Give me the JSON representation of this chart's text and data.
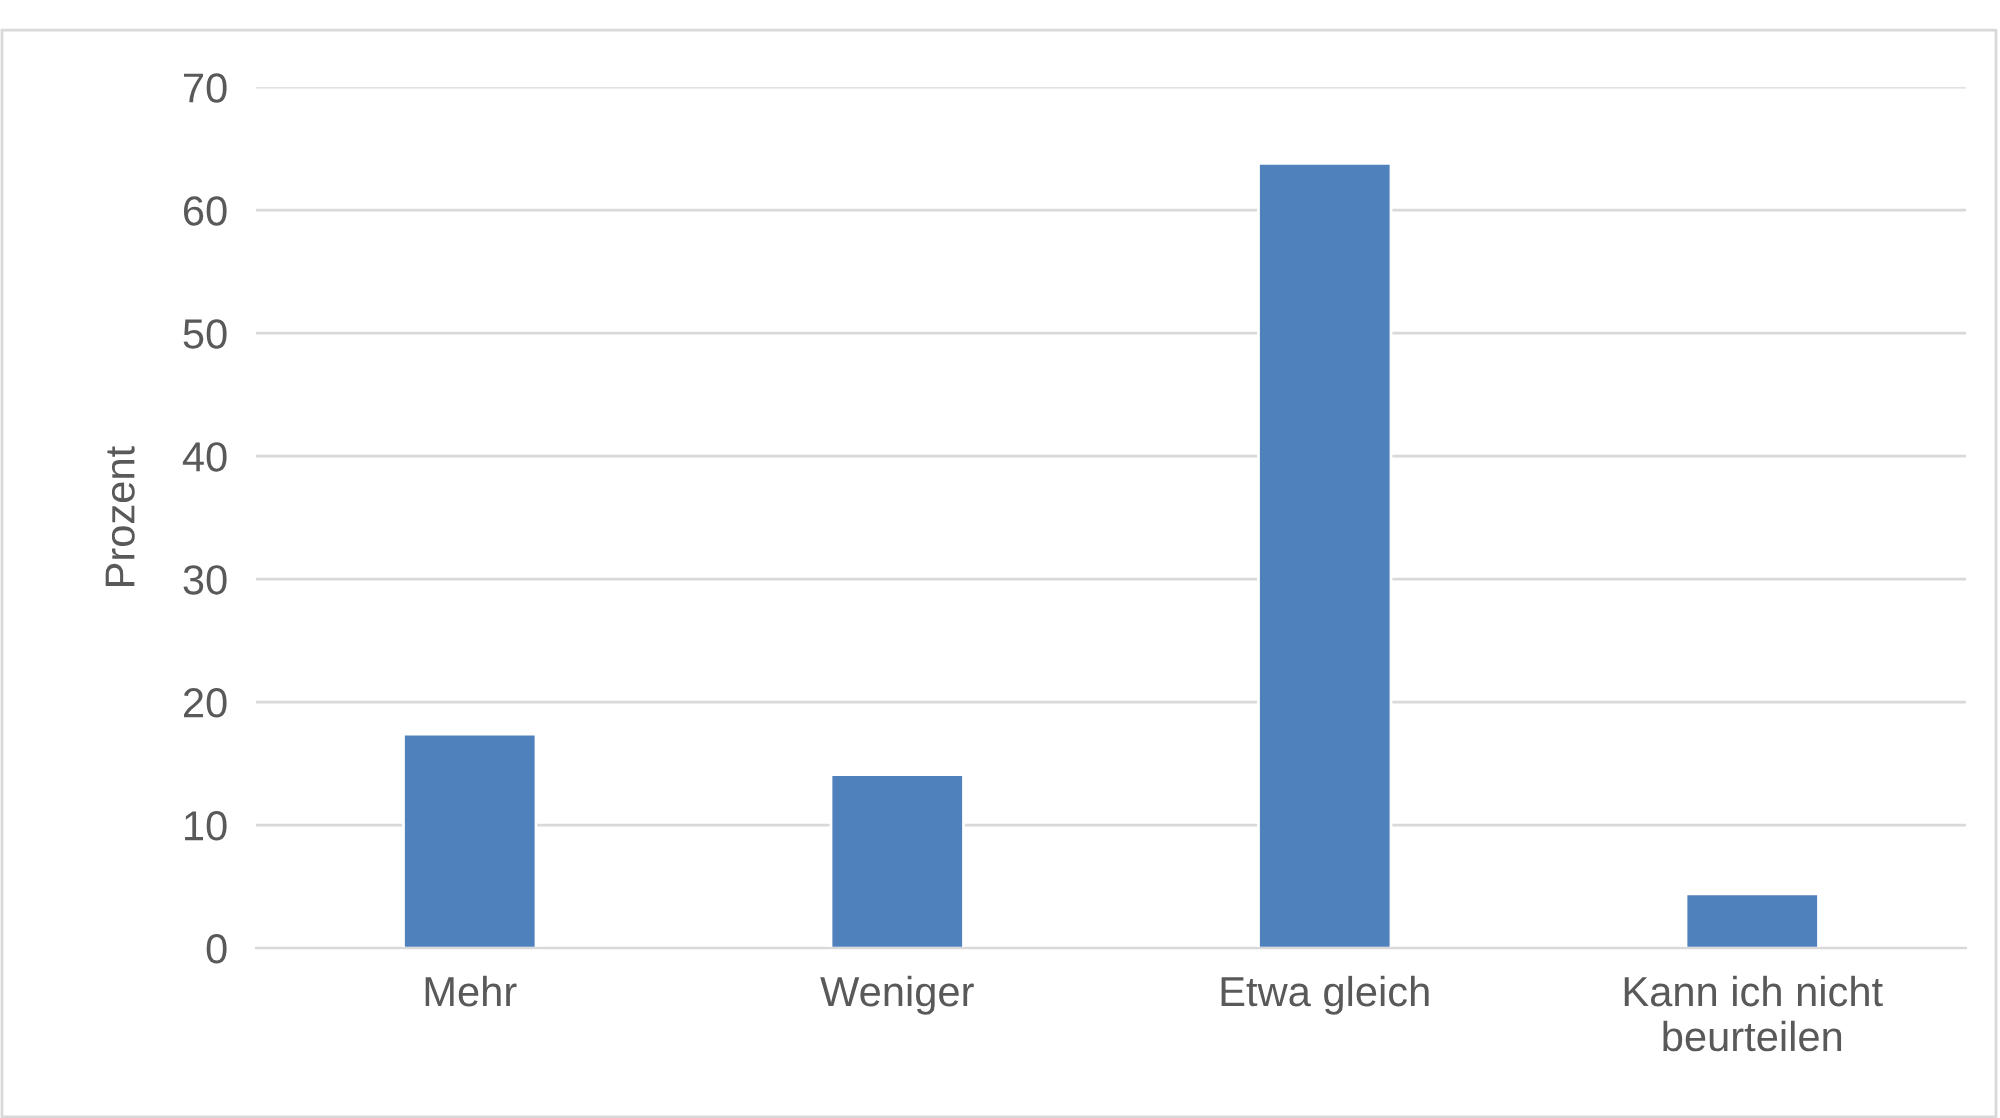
{
  "chart_data": {
    "type": "bar",
    "ylabel": "Prozent",
    "categories": [
      "Mehr",
      "Weniger",
      "Etwa gleich",
      "Kann ich nicht\nbeurteilen"
    ],
    "values": [
      17.4,
      14.1,
      63.8,
      4.4
    ],
    "color": "#4f81bd",
    "ylim": [
      0,
      70
    ],
    "yticks": [
      0,
      10,
      20,
      30,
      40,
      50,
      60,
      70
    ],
    "grid": "y",
    "legend": false
  }
}
